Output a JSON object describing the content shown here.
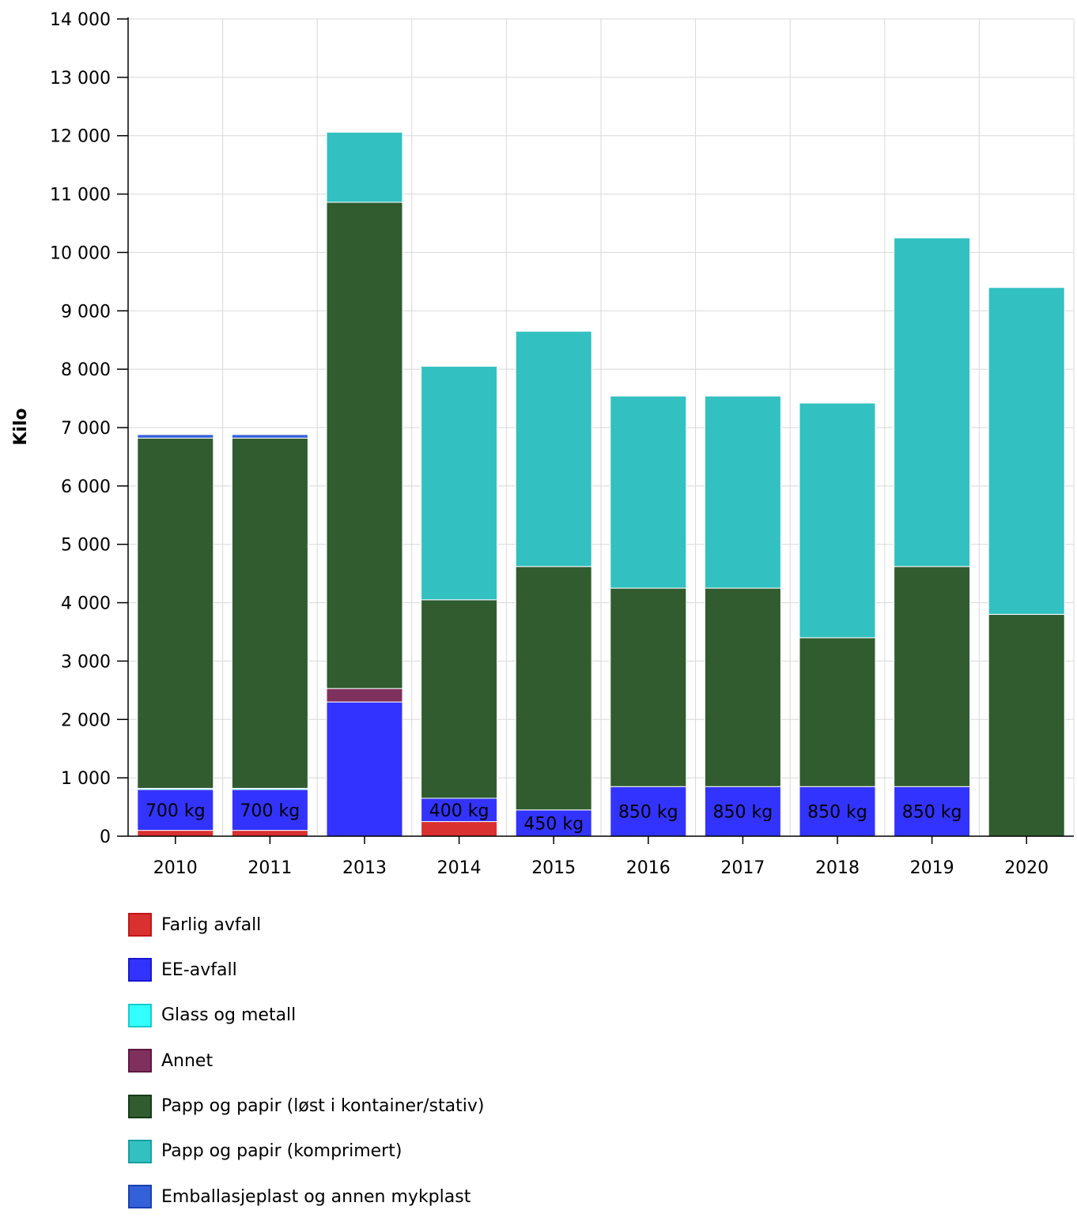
{
  "chart_data": {
    "type": "bar",
    "stacked": true,
    "title": "",
    "xlabel": "",
    "ylabel": "Kilo",
    "ylim": [
      0,
      14000
    ],
    "yticks": [
      0,
      1000,
      2000,
      3000,
      4000,
      5000,
      6000,
      7000,
      8000,
      9000,
      10000,
      11000,
      12000,
      13000,
      14000
    ],
    "ytick_labels": [
      "0",
      "1 000",
      "2 000",
      "3 000",
      "4 000",
      "5 000",
      "6 000",
      "7 000",
      "8 000",
      "9 000",
      "10 000",
      "11 000",
      "12 000",
      "13 000",
      "14 000"
    ],
    "grid": true,
    "legend_position": "bottom",
    "categories": [
      "2010",
      "2011",
      "2013",
      "2014",
      "2015",
      "2016",
      "2017",
      "2018",
      "2019",
      "2020"
    ],
    "series": [
      {
        "name": "Farlig avfall",
        "color": "#d93030",
        "border": "#c01818",
        "values": [
          100,
          100,
          0,
          250,
          0,
          0,
          0,
          0,
          0,
          0
        ]
      },
      {
        "name": "EE-avfall",
        "color": "#3333ff",
        "border": "#1818cc",
        "values": [
          700,
          700,
          2300,
          400,
          450,
          850,
          850,
          850,
          850,
          0
        ]
      },
      {
        "name": "Glass og metall",
        "color": "#33ffff",
        "border": "#18cccc",
        "values": [
          20,
          20,
          0,
          0,
          0,
          0,
          0,
          0,
          0,
          0
        ]
      },
      {
        "name": "Annet",
        "color": "#80305c",
        "border": "#5c1840",
        "values": [
          0,
          0,
          230,
          0,
          0,
          0,
          0,
          0,
          0,
          0
        ]
      },
      {
        "name": "Papp og papir (løst i kontainer/stativ)",
        "color": "#305c30",
        "border": "#183a18",
        "values": [
          6000,
          6000,
          8330,
          3400,
          4170,
          3400,
          3400,
          2550,
          3770,
          3800
        ]
      },
      {
        "name": "Papp og papir (komprimert)",
        "color": "#33c0c0",
        "border": "#18a0a0",
        "values": [
          0,
          0,
          1200,
          4000,
          4030,
          3290,
          3290,
          4020,
          5630,
          5600
        ]
      },
      {
        "name": "Emballasjeplast og annen mykplast",
        "color": "#3361d9",
        "border": "#1840b0",
        "values": [
          60,
          60,
          0,
          0,
          0,
          0,
          0,
          0,
          0,
          0
        ]
      }
    ],
    "data_labels": [
      "700 kg",
      "700 kg",
      "",
      "400 kg",
      "450 kg",
      "850 kg",
      "850 kg",
      "850 kg",
      "850 kg",
      ""
    ]
  }
}
